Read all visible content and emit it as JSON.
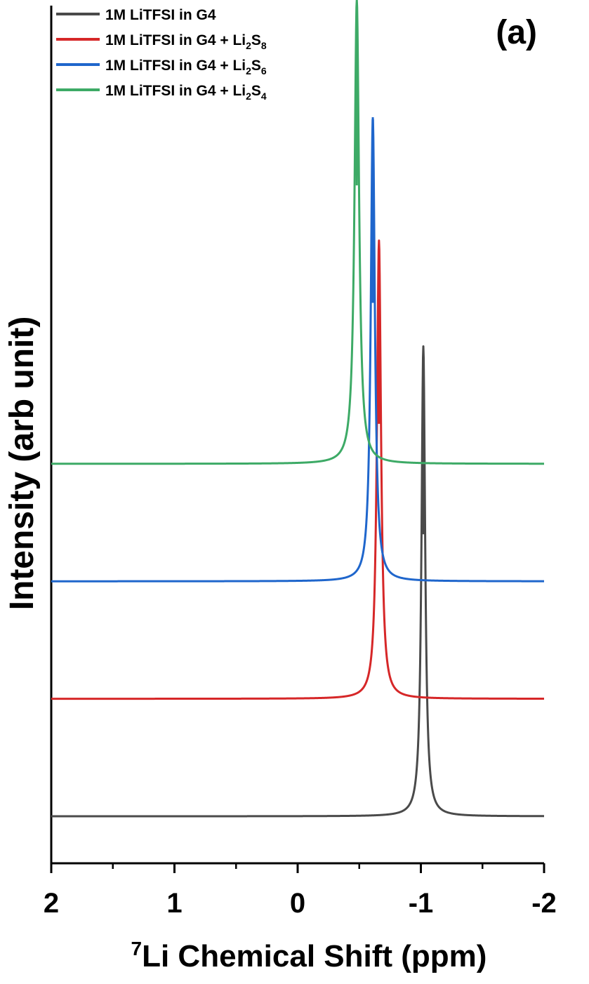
{
  "chart_data": {
    "type": "line",
    "panel_label": "(a)",
    "xlabel": {
      "superscript": "7",
      "text": "Li Chemical Shift (ppm)"
    },
    "ylabel": "Intensity (arb unit)",
    "xlim": [
      2,
      -2
    ],
    "x_reversed": true,
    "xticks": [
      2,
      1,
      0,
      -1,
      -2
    ],
    "xtick_labels": [
      "2",
      "1",
      "0",
      "-1",
      "-2"
    ],
    "x_minor_ticks": [
      1.5,
      0.5,
      -0.5,
      -1.5
    ],
    "yticks_shown": false,
    "ylim": [
      0,
      7.3
    ],
    "grid": false,
    "legend_position": "top-left",
    "series": [
      {
        "name": "1M LiTFSI in G4",
        "name_main": "1M LiTFSI in G4",
        "sub1": "",
        "mid": "",
        "sub2": "",
        "color": "#4a4a4a",
        "baseline": 0.4,
        "peak_center": -1.02,
        "peak_width": 0.018,
        "peak_height": 4.0
      },
      {
        "name": "1M LiTFSI in G4 + Li2S8",
        "name_main": "1M LiTFSI in G4 + Li",
        "sub1": "2",
        "mid": "S",
        "sub2": "8",
        "color": "#d62728",
        "baseline": 1.4,
        "peak_center": -0.66,
        "peak_width": 0.02,
        "peak_height": 3.9
      },
      {
        "name": "1M LiTFSI in G4 + Li2S6",
        "name_main": "1M LiTFSI in G4 + Li",
        "sub1": "2",
        "mid": "S",
        "sub2": "6",
        "color": "#1f66cc",
        "baseline": 2.4,
        "peak_center": -0.61,
        "peak_width": 0.02,
        "peak_height": 3.95
      },
      {
        "name": "1M LiTFSI in G4 + Li2S4",
        "name_main": "1M LiTFSI in G4 + Li",
        "sub1": "2",
        "mid": "S",
        "sub2": "4",
        "color": "#3daa66",
        "baseline": 3.4,
        "peak_center": -0.48,
        "peak_width": 0.022,
        "peak_height": 3.95
      }
    ]
  }
}
